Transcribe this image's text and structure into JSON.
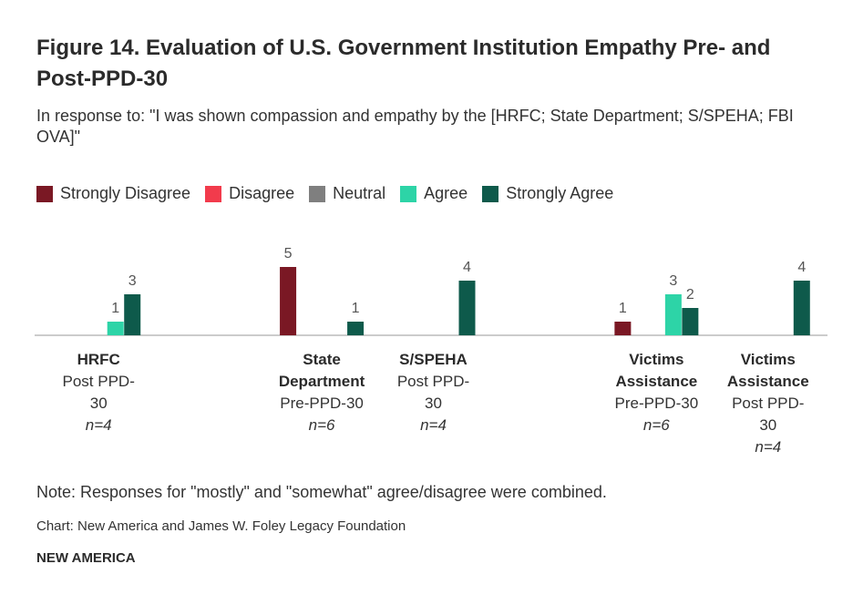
{
  "chart_data": {
    "type": "bar",
    "title": "Figure 14. Evaluation of U.S. Government Institution Empathy Pre- and Post-PPD-30",
    "subtitle": "In response to: \"I was shown compassion and empathy by the [HRFC; State Department; S/SPEHA; FBI OVA]\"",
    "categories": [
      "HRFC",
      null,
      "State Department",
      "S/SPEHA",
      null,
      "Victims Assistance",
      "Victims Assistance"
    ],
    "category_periods": [
      "Post PPD-30",
      null,
      "Pre-PPD-30",
      "Post PPD-30",
      null,
      "Pre-PPD-30",
      "Post PPD-30"
    ],
    "category_n": [
      "n=4",
      null,
      "n=6",
      "n=4",
      null,
      "n=6",
      "n=4"
    ],
    "series": [
      {
        "name": "Strongly Disagree",
        "color": "#7a1824",
        "values": [
          null,
          null,
          5,
          null,
          null,
          1,
          null
        ]
      },
      {
        "name": "Disagree",
        "color": "#f23b4c",
        "values": [
          null,
          null,
          null,
          null,
          null,
          null,
          null
        ]
      },
      {
        "name": "Neutral",
        "color": "#7f7f7f",
        "values": [
          null,
          null,
          null,
          null,
          null,
          null,
          null
        ]
      },
      {
        "name": "Agree",
        "color": "#2dd4a7",
        "values": [
          1,
          null,
          null,
          null,
          null,
          3,
          null
        ]
      },
      {
        "name": "Strongly Agree",
        "color": "#0e5a4b",
        "values": [
          3,
          null,
          1,
          4,
          null,
          2,
          4
        ]
      }
    ],
    "ylim": [
      0,
      5.5
    ],
    "note": "Note: Responses for \"mostly\" and \"somewhat\" agree/disagree were combined.",
    "source": "Chart: New America and James W. Foley Legacy Foundation",
    "brand": "NEW AMERICA"
  }
}
